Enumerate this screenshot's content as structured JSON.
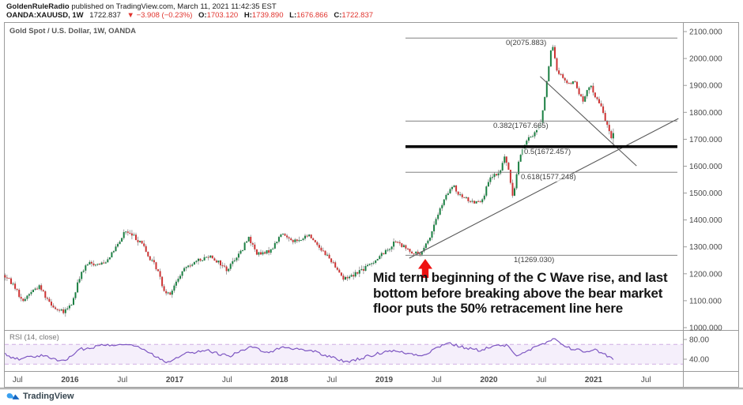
{
  "header": {
    "author": "GoldenRuleRadio",
    "published": " published on TradingView.com, March 11, 2021 11:42:35 EST",
    "symbol": "OANDA:XAUUSD, 1W",
    "last_price": "1722.837",
    "change": "▼ −3.908 (−0.23%)",
    "o_label": "O:",
    "o": "1703.120",
    "h_label": "H:",
    "h": "1739.890",
    "l_label": "L:",
    "l": "1676.866",
    "c_label": "C:",
    "c": "1722.837"
  },
  "chart": {
    "title": "Gold Spot / U.S. Dollar, 1W, OANDA",
    "rsi_label": "RSI (14, close)"
  },
  "annotation": {
    "lines": [
      "Mid term beginning of the C Wave rise, and last",
      "bottom before breaking above the bear market",
      "floor puts the 50% retracement line here"
    ]
  },
  "footer": {
    "brand": "TradingView"
  },
  "colors": {
    "up": "#1a7f42",
    "down": "#cc3333",
    "wick": "#8a8a8a",
    "red_accent": "#e0332d",
    "arrow": "#ee1111",
    "rsi": "#7e57c2",
    "rsi_band_fill": "#f5effb",
    "rsi_band_line": "#cfaee3",
    "fib_thin": "#6f6f6f",
    "fib_thick": "#000000",
    "trend": "#5a5a5a",
    "frame": "#9b9b9b",
    "axis_text": "#4a4a4a"
  },
  "chart_data": {
    "type": "candlestick",
    "title": "Gold Spot / U.S. Dollar, 1W, OANDA",
    "symbol": "XAUUSD",
    "timeframe": "1W",
    "y_axis": {
      "min": 1000,
      "max": 2100,
      "ticks": [
        2100,
        2000,
        1900,
        1800,
        1700,
        1600,
        1500,
        1400,
        1300,
        1200,
        1100,
        1000
      ]
    },
    "x_axis": {
      "ticks": [
        {
          "label": "Jul",
          "t": 2015.5,
          "bold": false
        },
        {
          "label": "2016",
          "t": 2016,
          "bold": true
        },
        {
          "label": "Jul",
          "t": 2016.5,
          "bold": false
        },
        {
          "label": "2017",
          "t": 2017,
          "bold": true
        },
        {
          "label": "Jul",
          "t": 2017.5,
          "bold": false
        },
        {
          "label": "2018",
          "t": 2018,
          "bold": true
        },
        {
          "label": "Jul",
          "t": 2018.5,
          "bold": false
        },
        {
          "label": "2019",
          "t": 2019,
          "bold": true
        },
        {
          "label": "Jul",
          "t": 2019.5,
          "bold": false
        },
        {
          "label": "2020",
          "t": 2020,
          "bold": true
        },
        {
          "label": "Jul",
          "t": 2020.5,
          "bold": false
        },
        {
          "label": "2021",
          "t": 2021,
          "bold": true
        },
        {
          "label": "Jul",
          "t": 2021.5,
          "bold": false
        }
      ]
    },
    "fib_levels": [
      {
        "label": "0(2075.883)",
        "price": 2075.883,
        "thick": false
      },
      {
        "label": "0.382(1767.665)",
        "price": 1767.665,
        "thick": false
      },
      {
        "label": "0.5(1672.457)",
        "price": 1672.457,
        "thick": true
      },
      {
        "label": "0.618(1577.248)",
        "price": 1577.248,
        "thick": false
      },
      {
        "label": "1(1269.030)",
        "price": 1269.03,
        "thick": false
      }
    ],
    "trendlines": [
      {
        "from": {
          "t": 2019.24,
          "p": 1258
        },
        "to": {
          "t": 2021.81,
          "p": 1777
        }
      },
      {
        "from": {
          "t": 2020.49,
          "p": 1933
        },
        "to": {
          "t": 2021.41,
          "p": 1601
        }
      }
    ],
    "ohlc_last": {
      "open": 1703.12,
      "high": 1739.89,
      "low": 1676.866,
      "close": 1722.837
    },
    "peak_high": 2075.883,
    "price_anchors": [
      [
        2015.38,
        1195
      ],
      [
        2015.45,
        1175
      ],
      [
        2015.5,
        1150
      ],
      [
        2015.56,
        1095
      ],
      [
        2015.65,
        1135
      ],
      [
        2015.73,
        1155
      ],
      [
        2015.79,
        1115
      ],
      [
        2015.88,
        1070
      ],
      [
        2015.96,
        1055
      ],
      [
        2016.04,
        1090
      ],
      [
        2016.12,
        1200
      ],
      [
        2016.2,
        1240
      ],
      [
        2016.3,
        1235
      ],
      [
        2016.38,
        1255
      ],
      [
        2016.5,
        1320
      ],
      [
        2016.54,
        1360
      ],
      [
        2016.62,
        1340
      ],
      [
        2016.7,
        1320
      ],
      [
        2016.77,
        1260
      ],
      [
        2016.85,
        1220
      ],
      [
        2016.92,
        1135
      ],
      [
        2016.98,
        1130
      ],
      [
        2017.08,
        1200
      ],
      [
        2017.15,
        1235
      ],
      [
        2017.27,
        1250
      ],
      [
        2017.35,
        1270
      ],
      [
        2017.45,
        1240
      ],
      [
        2017.52,
        1215
      ],
      [
        2017.6,
        1260
      ],
      [
        2017.67,
        1290
      ],
      [
        2017.72,
        1340
      ],
      [
        2017.8,
        1275
      ],
      [
        2017.88,
        1275
      ],
      [
        2017.96,
        1300
      ],
      [
        2018.04,
        1350
      ],
      [
        2018.12,
        1330
      ],
      [
        2018.2,
        1320
      ],
      [
        2018.3,
        1345
      ],
      [
        2018.4,
        1300
      ],
      [
        2018.5,
        1255
      ],
      [
        2018.58,
        1215
      ],
      [
        2018.63,
        1180
      ],
      [
        2018.73,
        1200
      ],
      [
        2018.85,
        1225
      ],
      [
        2018.95,
        1255
      ],
      [
        2019.05,
        1290
      ],
      [
        2019.13,
        1320
      ],
      [
        2019.22,
        1295
      ],
      [
        2019.3,
        1280
      ],
      [
        2019.37,
        1272
      ],
      [
        2019.45,
        1330
      ],
      [
        2019.52,
        1410
      ],
      [
        2019.6,
        1480
      ],
      [
        2019.68,
        1530
      ],
      [
        2019.73,
        1490
      ],
      [
        2019.8,
        1480
      ],
      [
        2019.88,
        1465
      ],
      [
        2019.96,
        1480
      ],
      [
        2020.04,
        1560
      ],
      [
        2020.12,
        1570
      ],
      [
        2020.17,
        1640
      ],
      [
        2020.22,
        1560
      ],
      [
        2020.25,
        1480
      ],
      [
        2020.3,
        1620
      ],
      [
        2020.37,
        1690
      ],
      [
        2020.45,
        1720
      ],
      [
        2020.52,
        1770
      ],
      [
        2020.56,
        1880
      ],
      [
        2020.6,
        1990
      ],
      [
        2020.62,
        2060
      ],
      [
        2020.67,
        1955
      ],
      [
        2020.73,
        1930
      ],
      [
        2020.78,
        1900
      ],
      [
        2020.83,
        1920
      ],
      [
        2020.88,
        1870
      ],
      [
        2020.92,
        1840
      ],
      [
        2020.96,
        1880
      ],
      [
        2021.0,
        1900
      ],
      [
        2021.04,
        1850
      ],
      [
        2021.08,
        1830
      ],
      [
        2021.12,
        1790
      ],
      [
        2021.15,
        1750
      ],
      [
        2021.18,
        1700
      ],
      [
        2021.205,
        1722
      ]
    ],
    "rsi": {
      "overbought": 70,
      "oversold": 30,
      "ticks": [
        {
          "label": "80.00",
          "v": 80
        },
        {
          "label": "40.00",
          "v": 40
        }
      ],
      "anchors": [
        [
          2015.38,
          50
        ],
        [
          2015.5,
          40
        ],
        [
          2015.7,
          48
        ],
        [
          2015.95,
          36
        ],
        [
          2016.1,
          60
        ],
        [
          2016.3,
          68
        ],
        [
          2016.54,
          72
        ],
        [
          2016.7,
          60
        ],
        [
          2016.92,
          34
        ],
        [
          2017.1,
          52
        ],
        [
          2017.3,
          58
        ],
        [
          2017.52,
          46
        ],
        [
          2017.72,
          64
        ],
        [
          2017.9,
          55
        ],
        [
          2018.04,
          64
        ],
        [
          2018.3,
          58
        ],
        [
          2018.5,
          44
        ],
        [
          2018.63,
          34
        ],
        [
          2018.85,
          46
        ],
        [
          2019.05,
          58
        ],
        [
          2019.22,
          52
        ],
        [
          2019.37,
          48
        ],
        [
          2019.6,
          74
        ],
        [
          2019.73,
          65
        ],
        [
          2019.9,
          58
        ],
        [
          2020.04,
          66
        ],
        [
          2020.17,
          68
        ],
        [
          2020.25,
          48
        ],
        [
          2020.45,
          64
        ],
        [
          2020.62,
          80
        ],
        [
          2020.78,
          62
        ],
        [
          2020.92,
          55
        ],
        [
          2021.0,
          60
        ],
        [
          2021.08,
          52
        ],
        [
          2021.18,
          40
        ],
        [
          2021.205,
          42
        ]
      ]
    }
  }
}
